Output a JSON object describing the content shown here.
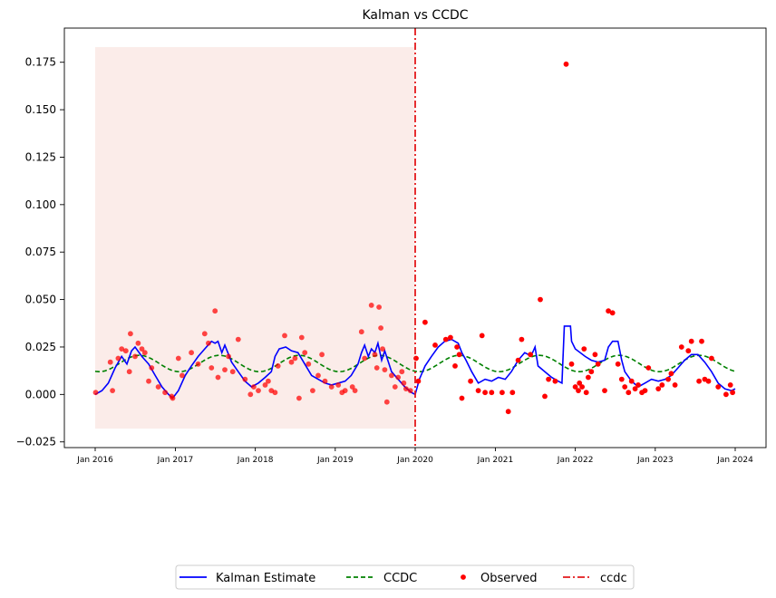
{
  "chart_data": {
    "type": "line",
    "title": "Kalman vs CCDC",
    "xlabel": "",
    "ylabel": "",
    "xlim": [
      "2016-01-01",
      "2024-01-01"
    ],
    "ylim": [
      -0.028,
      0.193
    ],
    "grid": false,
    "legend_position": "bottom-center",
    "x_tick_labels": [
      "Jan 2016",
      "Jan 2017",
      "Jan 2018",
      "Jan 2019",
      "Jan 2020",
      "Jan 2021",
      "Jan 2022",
      "Jan 2023",
      "Jan 2024"
    ],
    "x_tick_dates": [
      "2016-01-01",
      "2017-01-01",
      "2018-01-01",
      "2019-01-01",
      "2020-01-01",
      "2021-01-01",
      "2022-01-01",
      "2023-01-01",
      "2024-01-01"
    ],
    "y_tick_values": [
      -0.025,
      0.0,
      0.025,
      0.05,
      0.075,
      0.1,
      0.125,
      0.15,
      0.175
    ],
    "y_tick_labels": [
      "−0.025",
      "0.000",
      "0.025",
      "0.050",
      "0.075",
      "0.100",
      "0.125",
      "0.150",
      "0.175"
    ],
    "shaded_region": {
      "x": [
        "2016-01-01",
        "2019-12-31"
      ],
      "y": [
        -0.018,
        0.183
      ],
      "color": "#f9e6e2"
    },
    "vertical_line": {
      "name": "ccdc",
      "x": "2020-01-01",
      "color": "#e31a1c",
      "style": "dash-dot"
    },
    "legend": [
      {
        "label": "Kalman Estimate",
        "kind": "line",
        "color": "#0000ff"
      },
      {
        "label": "CCDC",
        "kind": "dashed",
        "color": "#008000"
      },
      {
        "label": "Observed",
        "kind": "marker",
        "color": "#ff0000"
      },
      {
        "label": "ccdc",
        "kind": "dashdot",
        "color": "#e31a1c"
      }
    ],
    "series": [
      {
        "name": "Kalman Estimate",
        "color": "#0000ff",
        "points": [
          [
            "2016-01-01",
            0.0
          ],
          [
            "2016-02-01",
            0.002
          ],
          [
            "2016-03-01",
            0.006
          ],
          [
            "2016-04-01",
            0.014
          ],
          [
            "2016-05-01",
            0.02
          ],
          [
            "2016-05-25",
            0.016
          ],
          [
            "2016-06-15",
            0.023
          ],
          [
            "2016-07-01",
            0.025
          ],
          [
            "2016-08-01",
            0.02
          ],
          [
            "2016-09-01",
            0.016
          ],
          [
            "2016-10-01",
            0.01
          ],
          [
            "2016-11-01",
            0.004
          ],
          [
            "2016-12-01",
            0.0
          ],
          [
            "2016-12-20",
            -0.002
          ],
          [
            "2017-01-15",
            0.002
          ],
          [
            "2017-02-15",
            0.01
          ],
          [
            "2017-03-15",
            0.015
          ],
          [
            "2017-04-15",
            0.02
          ],
          [
            "2017-05-15",
            0.024
          ],
          [
            "2017-06-15",
            0.028
          ],
          [
            "2017-07-01",
            0.027
          ],
          [
            "2017-07-15",
            0.028
          ],
          [
            "2017-08-01",
            0.022
          ],
          [
            "2017-08-15",
            0.026
          ],
          [
            "2017-09-15",
            0.017
          ],
          [
            "2017-10-15",
            0.012
          ],
          [
            "2017-11-15",
            0.007
          ],
          [
            "2017-12-15",
            0.004
          ],
          [
            "2018-01-15",
            0.006
          ],
          [
            "2018-02-15",
            0.009
          ],
          [
            "2018-03-15",
            0.012
          ],
          [
            "2018-04-01",
            0.02
          ],
          [
            "2018-04-20",
            0.024
          ],
          [
            "2018-05-20",
            0.025
          ],
          [
            "2018-06-15",
            0.023
          ],
          [
            "2018-07-15",
            0.022
          ],
          [
            "2018-08-15",
            0.016
          ],
          [
            "2018-09-15",
            0.01
          ],
          [
            "2018-10-15",
            0.008
          ],
          [
            "2018-11-15",
            0.006
          ],
          [
            "2018-12-15",
            0.005
          ],
          [
            "2019-01-15",
            0.006
          ],
          [
            "2019-02-15",
            0.007
          ],
          [
            "2019-03-15",
            0.01
          ],
          [
            "2019-04-15",
            0.016
          ],
          [
            "2019-05-01",
            0.022
          ],
          [
            "2019-05-15",
            0.026
          ],
          [
            "2019-06-01",
            0.02
          ],
          [
            "2019-06-15",
            0.024
          ],
          [
            "2019-07-01",
            0.022
          ],
          [
            "2019-07-15",
            0.027
          ],
          [
            "2019-08-01",
            0.018
          ],
          [
            "2019-08-15",
            0.023
          ],
          [
            "2019-09-15",
            0.012
          ],
          [
            "2019-10-15",
            0.008
          ],
          [
            "2019-11-15",
            0.004
          ],
          [
            "2019-12-15",
            0.001
          ],
          [
            "2020-01-01",
            0.0
          ],
          [
            "2020-01-20",
            0.008
          ],
          [
            "2020-02-15",
            0.015
          ],
          [
            "2020-03-15",
            0.02
          ],
          [
            "2020-04-15",
            0.025
          ],
          [
            "2020-05-15",
            0.028
          ],
          [
            "2020-06-15",
            0.029
          ],
          [
            "2020-07-15",
            0.027
          ],
          [
            "2020-08-01",
            0.022
          ],
          [
            "2020-08-20",
            0.018
          ],
          [
            "2020-09-15",
            0.012
          ],
          [
            "2020-10-15",
            0.006
          ],
          [
            "2020-11-15",
            0.008
          ],
          [
            "2020-12-15",
            0.007
          ],
          [
            "2021-01-15",
            0.009
          ],
          [
            "2021-02-15",
            0.008
          ],
          [
            "2021-03-15",
            0.012
          ],
          [
            "2021-04-15",
            0.018
          ],
          [
            "2021-05-15",
            0.022
          ],
          [
            "2021-06-01",
            0.021
          ],
          [
            "2021-06-20",
            0.022
          ],
          [
            "2021-07-01",
            0.025
          ],
          [
            "2021-07-15",
            0.015
          ],
          [
            "2021-08-15",
            0.012
          ],
          [
            "2021-09-15",
            0.009
          ],
          [
            "2021-10-15",
            0.007
          ],
          [
            "2021-11-01",
            0.006
          ],
          [
            "2021-11-12",
            0.036
          ],
          [
            "2021-12-10",
            0.036
          ],
          [
            "2021-12-15",
            0.028
          ],
          [
            "2022-01-01",
            0.024
          ],
          [
            "2022-02-15",
            0.02
          ],
          [
            "2022-03-15",
            0.018
          ],
          [
            "2022-04-15",
            0.017
          ],
          [
            "2022-05-15",
            0.018
          ],
          [
            "2022-06-01",
            0.025
          ],
          [
            "2022-06-20",
            0.028
          ],
          [
            "2022-07-15",
            0.028
          ],
          [
            "2022-08-01",
            0.018
          ],
          [
            "2022-08-15",
            0.012
          ],
          [
            "2022-09-15",
            0.007
          ],
          [
            "2022-10-15",
            0.004
          ],
          [
            "2022-11-15",
            0.006
          ],
          [
            "2022-12-15",
            0.008
          ],
          [
            "2023-01-15",
            0.007
          ],
          [
            "2023-02-15",
            0.008
          ],
          [
            "2023-03-15",
            0.01
          ],
          [
            "2023-04-15",
            0.014
          ],
          [
            "2023-05-15",
            0.018
          ],
          [
            "2023-06-15",
            0.021
          ],
          [
            "2023-07-15",
            0.021
          ],
          [
            "2023-08-15",
            0.017
          ],
          [
            "2023-09-15",
            0.012
          ],
          [
            "2023-10-15",
            0.006
          ],
          [
            "2023-11-15",
            0.003
          ],
          [
            "2023-12-15",
            0.002
          ],
          [
            "2024-01-01",
            0.003
          ]
        ]
      },
      {
        "name": "CCDC",
        "color": "#008000",
        "mean": 0.0163,
        "amplitude": 0.0043,
        "peak_month": 6.6
      },
      {
        "name": "Observed",
        "color": "#ff0000",
        "points": [
          [
            "2016-01-03",
            0.001
          ],
          [
            "2016-03-10",
            0.017
          ],
          [
            "2016-03-20",
            0.002
          ],
          [
            "2016-04-15",
            0.019
          ],
          [
            "2016-05-01",
            0.024
          ],
          [
            "2016-05-20",
            0.023
          ],
          [
            "2016-06-05",
            0.012
          ],
          [
            "2016-06-10",
            0.032
          ],
          [
            "2016-07-01",
            0.02
          ],
          [
            "2016-07-15",
            0.027
          ],
          [
            "2016-08-01",
            0.024
          ],
          [
            "2016-08-15",
            0.022
          ],
          [
            "2016-09-01",
            0.007
          ],
          [
            "2016-09-15",
            0.014
          ],
          [
            "2016-10-15",
            0.004
          ],
          [
            "2016-11-15",
            0.001
          ],
          [
            "2016-12-15",
            -0.001
          ],
          [
            "2016-12-20",
            -0.002
          ],
          [
            "2017-01-15",
            0.019
          ],
          [
            "2017-02-01",
            0.01
          ],
          [
            "2017-03-15",
            0.022
          ],
          [
            "2017-04-15",
            0.016
          ],
          [
            "2017-05-15",
            0.032
          ],
          [
            "2017-06-01",
            0.027
          ],
          [
            "2017-06-15",
            0.014
          ],
          [
            "2017-07-01",
            0.044
          ],
          [
            "2017-07-15",
            0.009
          ],
          [
            "2017-08-15",
            0.013
          ],
          [
            "2017-09-01",
            0.02
          ],
          [
            "2017-09-20",
            0.012
          ],
          [
            "2017-10-15",
            0.029
          ],
          [
            "2017-11-15",
            0.008
          ],
          [
            "2017-12-10",
            0.0
          ],
          [
            "2017-12-25",
            0.004
          ],
          [
            "2018-01-15",
            0.002
          ],
          [
            "2018-02-15",
            0.005
          ],
          [
            "2018-03-01",
            0.007
          ],
          [
            "2018-03-15",
            0.002
          ],
          [
            "2018-04-01",
            0.001
          ],
          [
            "2018-04-15",
            0.015
          ],
          [
            "2018-05-15",
            0.031
          ],
          [
            "2018-06-15",
            0.017
          ],
          [
            "2018-07-01",
            0.019
          ],
          [
            "2018-07-20",
            -0.002
          ],
          [
            "2018-08-01",
            0.03
          ],
          [
            "2018-08-15",
            0.022
          ],
          [
            "2018-09-01",
            0.016
          ],
          [
            "2018-09-20",
            0.002
          ],
          [
            "2018-10-15",
            0.01
          ],
          [
            "2018-11-01",
            0.021
          ],
          [
            "2018-11-15",
            0.007
          ],
          [
            "2018-12-15",
            0.004
          ],
          [
            "2019-01-15",
            0.005
          ],
          [
            "2019-02-01",
            0.001
          ],
          [
            "2019-02-15",
            0.002
          ],
          [
            "2019-03-20",
            0.004
          ],
          [
            "2019-04-01",
            0.002
          ],
          [
            "2019-05-01",
            0.033
          ],
          [
            "2019-05-15",
            0.019
          ],
          [
            "2019-06-15",
            0.047
          ],
          [
            "2019-07-01",
            0.021
          ],
          [
            "2019-07-10",
            0.014
          ],
          [
            "2019-07-20",
            0.046
          ],
          [
            "2019-07-28",
            0.035
          ],
          [
            "2019-08-05",
            0.024
          ],
          [
            "2019-08-15",
            0.013
          ],
          [
            "2019-08-25",
            -0.004
          ],
          [
            "2019-09-15",
            0.01
          ],
          [
            "2019-10-01",
            0.004
          ],
          [
            "2019-10-15",
            0.009
          ],
          [
            "2019-11-01",
            0.012
          ],
          [
            "2019-11-10",
            0.006
          ],
          [
            "2019-11-20",
            0.003
          ],
          [
            "2019-12-10",
            0.002
          ],
          [
            "2020-01-05",
            0.019
          ],
          [
            "2020-01-15",
            0.007
          ],
          [
            "2020-02-15",
            0.038
          ],
          [
            "2020-04-01",
            0.026
          ],
          [
            "2020-05-20",
            0.029
          ],
          [
            "2020-06-10",
            0.03
          ],
          [
            "2020-07-01",
            0.015
          ],
          [
            "2020-07-10",
            0.025
          ],
          [
            "2020-07-20",
            0.021
          ],
          [
            "2020-08-01",
            -0.002
          ],
          [
            "2020-09-10",
            0.007
          ],
          [
            "2020-10-15",
            0.002
          ],
          [
            "2020-11-01",
            0.031
          ],
          [
            "2020-11-15",
            0.001
          ],
          [
            "2020-12-15",
            0.001
          ],
          [
            "2021-02-01",
            0.001
          ],
          [
            "2021-03-01",
            -0.009
          ],
          [
            "2021-03-20",
            0.001
          ],
          [
            "2021-04-15",
            0.018
          ],
          [
            "2021-05-01",
            0.029
          ],
          [
            "2021-06-10",
            0.021
          ],
          [
            "2021-07-25",
            0.05
          ],
          [
            "2021-08-15",
            -0.001
          ],
          [
            "2021-09-01",
            0.008
          ],
          [
            "2021-10-01",
            0.007
          ],
          [
            "2021-11-20",
            0.174
          ],
          [
            "2021-12-15",
            0.016
          ],
          [
            "2022-01-01",
            0.004
          ],
          [
            "2022-01-15",
            0.002
          ],
          [
            "2022-01-20",
            0.006
          ],
          [
            "2022-02-01",
            0.004
          ],
          [
            "2022-02-10",
            0.024
          ],
          [
            "2022-02-20",
            0.001
          ],
          [
            "2022-03-01",
            0.009
          ],
          [
            "2022-03-15",
            0.012
          ],
          [
            "2022-04-01",
            0.021
          ],
          [
            "2022-04-15",
            0.016
          ],
          [
            "2022-05-15",
            0.002
          ],
          [
            "2022-06-01",
            0.044
          ],
          [
            "2022-06-20",
            0.043
          ],
          [
            "2022-07-15",
            0.016
          ],
          [
            "2022-08-01",
            0.008
          ],
          [
            "2022-08-15",
            0.004
          ],
          [
            "2022-09-01",
            0.001
          ],
          [
            "2022-09-15",
            0.007
          ],
          [
            "2022-10-01",
            0.003
          ],
          [
            "2022-10-15",
            0.005
          ],
          [
            "2022-11-01",
            0.001
          ],
          [
            "2022-11-15",
            0.002
          ],
          [
            "2022-12-01",
            0.014
          ],
          [
            "2023-01-15",
            0.003
          ],
          [
            "2023-02-01",
            0.005
          ],
          [
            "2023-03-01",
            0.008
          ],
          [
            "2023-03-15",
            0.011
          ],
          [
            "2023-04-01",
            0.005
          ],
          [
            "2023-05-01",
            0.025
          ],
          [
            "2023-06-01",
            0.023
          ],
          [
            "2023-06-15",
            0.028
          ],
          [
            "2023-07-20",
            0.007
          ],
          [
            "2023-08-01",
            0.028
          ],
          [
            "2023-08-15",
            0.008
          ],
          [
            "2023-09-01",
            0.007
          ],
          [
            "2023-09-15",
            0.019
          ],
          [
            "2023-10-15",
            0.004
          ],
          [
            "2023-11-20",
            0.0
          ],
          [
            "2023-12-10",
            0.005
          ],
          [
            "2023-12-20",
            0.001
          ]
        ]
      }
    ]
  }
}
